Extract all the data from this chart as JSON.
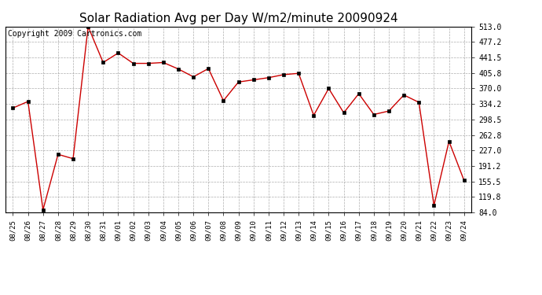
{
  "title": "Solar Radiation Avg per Day W/m2/minute 20090924",
  "copyright": "Copyright 2009 Cartronics.com",
  "dates": [
    "08/25",
    "08/26",
    "08/27",
    "08/28",
    "08/29",
    "08/30",
    "08/31",
    "09/01",
    "09/02",
    "09/03",
    "09/04",
    "09/05",
    "09/06",
    "09/07",
    "09/08",
    "09/09",
    "09/10",
    "09/11",
    "09/12",
    "09/13",
    "09/14",
    "09/15",
    "09/16",
    "09/17",
    "09/18",
    "09/19",
    "09/20",
    "09/21",
    "09/22",
    "09/23",
    "09/24"
  ],
  "values": [
    325,
    340,
    90,
    218,
    208,
    513,
    430,
    452,
    428,
    428,
    430,
    415,
    397,
    416,
    342,
    385,
    390,
    395,
    402,
    405,
    308,
    370,
    314,
    358,
    310,
    318,
    355,
    338,
    100,
    248,
    158
  ],
  "line_color": "#cc0000",
  "marker_color": "#000000",
  "bg_color": "#ffffff",
  "grid_color": "#999999",
  "ylim": [
    84.0,
    513.0
  ],
  "yticks": [
    84.0,
    119.8,
    155.5,
    191.2,
    227.0,
    262.8,
    298.5,
    334.2,
    370.0,
    405.8,
    441.5,
    477.2,
    513.0
  ],
  "title_fontsize": 11,
  "copyright_fontsize": 7
}
